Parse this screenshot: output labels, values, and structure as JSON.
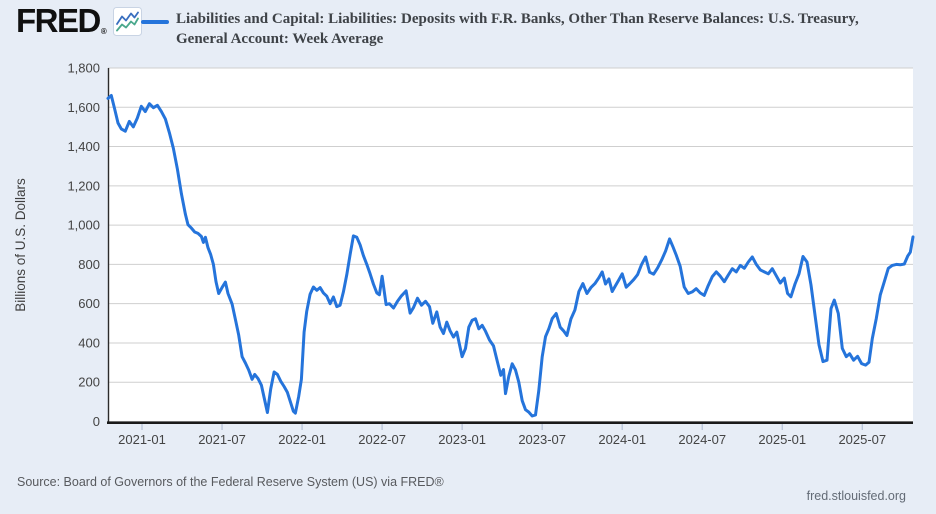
{
  "header": {
    "logo_text": "FRED",
    "logo_registered_mark": "®",
    "icon": "fred-zigzag-chart-icon",
    "title_line1": "Liabilities and Capital: Liabilities: Deposits with F.R. Banks, Other Than Reserve Balances: U.S. Treasury,",
    "title_line2": "General Account: Week Average"
  },
  "footer": {
    "source": "Source: Board of Governors of the Federal Reserve System (US) via FRED®",
    "site": "fred.stlouisfed.org"
  },
  "colors": {
    "background": "#e7edf6",
    "plot_background": "#ffffff",
    "gridline": "#cfcfcf",
    "axis_line": "#1a1a1a",
    "tick_mark": "#b8c4d9",
    "tick_label": "#444444",
    "line": "#2574db",
    "logo_icon_blue": "#3a6fbf",
    "logo_icon_green": "#4aa88c"
  },
  "chart_data": {
    "type": "line",
    "title": "Liabilities and Capital: Liabilities: Deposits with F.R. Banks, Other Than Reserve Balances: U.S. Treasury, General Account: Week Average",
    "xlabel": "",
    "ylabel": "Billions of U.S. Dollars",
    "ylim": [
      0,
      1800
    ],
    "y_tick_step": 200,
    "y_tick_values": [
      0,
      200,
      400,
      600,
      800,
      1000,
      1200,
      1400,
      1600,
      1800
    ],
    "y_tick_labels": [
      "0",
      "200",
      "400",
      "600",
      "800",
      "1,000",
      "1,200",
      "1,400",
      "1,600",
      "1,800"
    ],
    "grid": "horizontal-on",
    "legend_position": "top",
    "line_color": "#2574db",
    "x_unit": "months since 2020-10-15 (left edge of plot)",
    "x_range_t": [
      0,
      60.35
    ],
    "x_ticks": [
      {
        "t": 2.55,
        "label": "2021-01"
      },
      {
        "t": 8.55,
        "label": "2021-07"
      },
      {
        "t": 14.55,
        "label": "2022-01"
      },
      {
        "t": 20.55,
        "label": "2022-07"
      },
      {
        "t": 26.55,
        "label": "2023-01"
      },
      {
        "t": 32.55,
        "label": "2023-07"
      },
      {
        "t": 38.55,
        "label": "2024-01"
      },
      {
        "t": 44.55,
        "label": "2024-07"
      },
      {
        "t": 50.55,
        "label": "2025-01"
      },
      {
        "t": 56.55,
        "label": "2025-07"
      }
    ],
    "series": [
      {
        "name": "Liabilities and Capital: Liabilities: Deposits with F.R. Banks, Other Than Reserve Balances: U.S. Treasury, General Account: Week Average",
        "units": "Billions of U.S. Dollars",
        "points": [
          [
            0,
            1645
          ],
          [
            0.25,
            1660
          ],
          [
            0.5,
            1590
          ],
          [
            0.75,
            1520
          ],
          [
            1,
            1490
          ],
          [
            1.3,
            1478
          ],
          [
            1.6,
            1528
          ],
          [
            1.9,
            1500
          ],
          [
            2.2,
            1545
          ],
          [
            2.5,
            1605
          ],
          [
            2.8,
            1578
          ],
          [
            3.1,
            1618
          ],
          [
            3.4,
            1598
          ],
          [
            3.7,
            1610
          ],
          [
            4,
            1578
          ],
          [
            4.3,
            1540
          ],
          [
            4.6,
            1470
          ],
          [
            4.9,
            1390
          ],
          [
            5.2,
            1285
          ],
          [
            5.5,
            1160
          ],
          [
            5.8,
            1055
          ],
          [
            6,
            1002
          ],
          [
            6.25,
            985
          ],
          [
            6.5,
            965
          ],
          [
            6.75,
            958
          ],
          [
            7,
            942
          ],
          [
            7.15,
            912
          ],
          [
            7.3,
            938
          ],
          [
            7.5,
            885
          ],
          [
            7.7,
            850
          ],
          [
            7.9,
            800
          ],
          [
            8.1,
            712
          ],
          [
            8.3,
            652
          ],
          [
            8.55,
            682
          ],
          [
            8.8,
            710
          ],
          [
            9,
            652
          ],
          [
            9.3,
            598
          ],
          [
            9.55,
            520
          ],
          [
            9.8,
            440
          ],
          [
            10.05,
            330
          ],
          [
            10.3,
            298
          ],
          [
            10.55,
            262
          ],
          [
            10.8,
            215
          ],
          [
            11,
            240
          ],
          [
            11.25,
            218
          ],
          [
            11.5,
            185
          ],
          [
            11.7,
            122
          ],
          [
            11.95,
            46
          ],
          [
            12.2,
            165
          ],
          [
            12.45,
            252
          ],
          [
            12.7,
            240
          ],
          [
            12.95,
            205
          ],
          [
            13.2,
            178
          ],
          [
            13.45,
            148
          ],
          [
            13.7,
            95
          ],
          [
            13.9,
            52
          ],
          [
            14.05,
            43
          ],
          [
            14.3,
            128
          ],
          [
            14.5,
            215
          ],
          [
            14.7,
            455
          ],
          [
            14.9,
            560
          ],
          [
            15.15,
            648
          ],
          [
            15.4,
            685
          ],
          [
            15.65,
            668
          ],
          [
            15.9,
            682
          ],
          [
            16.15,
            655
          ],
          [
            16.4,
            638
          ],
          [
            16.65,
            600
          ],
          [
            16.9,
            634
          ],
          [
            17.15,
            585
          ],
          [
            17.4,
            592
          ],
          [
            17.65,
            660
          ],
          [
            17.9,
            748
          ],
          [
            18.15,
            850
          ],
          [
            18.4,
            945
          ],
          [
            18.65,
            938
          ],
          [
            18.9,
            900
          ],
          [
            19.15,
            845
          ],
          [
            19.4,
            800
          ],
          [
            19.65,
            752
          ],
          [
            19.9,
            700
          ],
          [
            20.15,
            655
          ],
          [
            20.35,
            645
          ],
          [
            20.55,
            740
          ],
          [
            20.85,
            595
          ],
          [
            21.1,
            600
          ],
          [
            21.4,
            578
          ],
          [
            21.7,
            612
          ],
          [
            22,
            640
          ],
          [
            22.35,
            665
          ],
          [
            22.65,
            552
          ],
          [
            22.9,
            580
          ],
          [
            23.2,
            628
          ],
          [
            23.5,
            592
          ],
          [
            23.8,
            612
          ],
          [
            24.1,
            585
          ],
          [
            24.35,
            500
          ],
          [
            24.65,
            558
          ],
          [
            24.9,
            481
          ],
          [
            25.15,
            448
          ],
          [
            25.4,
            506
          ],
          [
            25.65,
            462
          ],
          [
            25.9,
            430
          ],
          [
            26.15,
            455
          ],
          [
            26.55,
            330
          ],
          [
            26.8,
            372
          ],
          [
            27.05,
            480
          ],
          [
            27.3,
            516
          ],
          [
            27.55,
            523
          ],
          [
            27.8,
            472
          ],
          [
            28.05,
            490
          ],
          [
            28.3,
            460
          ],
          [
            28.6,
            415
          ],
          [
            28.9,
            385
          ],
          [
            29.2,
            302
          ],
          [
            29.45,
            235
          ],
          [
            29.65,
            265
          ],
          [
            29.8,
            142
          ],
          [
            30.05,
            230
          ],
          [
            30.3,
            294
          ],
          [
            30.55,
            262
          ],
          [
            30.8,
            200
          ],
          [
            31.05,
            106
          ],
          [
            31.3,
            60
          ],
          [
            31.55,
            48
          ],
          [
            31.8,
            28
          ],
          [
            32.05,
            33
          ],
          [
            32.3,
            158
          ],
          [
            32.55,
            330
          ],
          [
            32.8,
            432
          ],
          [
            33.05,
            472
          ],
          [
            33.3,
            524
          ],
          [
            33.6,
            550
          ],
          [
            33.9,
            480
          ],
          [
            34.15,
            462
          ],
          [
            34.4,
            438
          ],
          [
            34.7,
            522
          ],
          [
            35,
            568
          ],
          [
            35.3,
            662
          ],
          [
            35.6,
            702
          ],
          [
            35.9,
            652
          ],
          [
            36.2,
            682
          ],
          [
            36.5,
            702
          ],
          [
            36.8,
            732
          ],
          [
            37.05,
            762
          ],
          [
            37.3,
            700
          ],
          [
            37.55,
            726
          ],
          [
            37.8,
            662
          ],
          [
            38.05,
            692
          ],
          [
            38.3,
            722
          ],
          [
            38.55,
            752
          ],
          [
            38.85,
            684
          ],
          [
            39.1,
            700
          ],
          [
            39.4,
            722
          ],
          [
            39.7,
            748
          ],
          [
            40,
            800
          ],
          [
            40.3,
            838
          ],
          [
            40.6,
            760
          ],
          [
            40.9,
            750
          ],
          [
            41.2,
            782
          ],
          [
            41.5,
            822
          ],
          [
            41.8,
            868
          ],
          [
            42.1,
            930
          ],
          [
            42.35,
            890
          ],
          [
            42.6,
            848
          ],
          [
            42.9,
            790
          ],
          [
            43.2,
            685
          ],
          [
            43.5,
            652
          ],
          [
            43.8,
            660
          ],
          [
            44.1,
            676
          ],
          [
            44.4,
            655
          ],
          [
            44.7,
            642
          ],
          [
            45,
            692
          ],
          [
            45.3,
            738
          ],
          [
            45.6,
            762
          ],
          [
            45.9,
            740
          ],
          [
            46.2,
            712
          ],
          [
            46.5,
            746
          ],
          [
            46.8,
            778
          ],
          [
            47.1,
            762
          ],
          [
            47.4,
            795
          ],
          [
            47.7,
            780
          ],
          [
            48,
            812
          ],
          [
            48.3,
            838
          ],
          [
            48.6,
            800
          ],
          [
            48.9,
            772
          ],
          [
            49.2,
            762
          ],
          [
            49.5,
            752
          ],
          [
            49.8,
            778
          ],
          [
            50.1,
            742
          ],
          [
            50.4,
            705
          ],
          [
            50.7,
            730
          ],
          [
            50.95,
            652
          ],
          [
            51.2,
            635
          ],
          [
            51.5,
            700
          ],
          [
            51.8,
            752
          ],
          [
            52.1,
            840
          ],
          [
            52.4,
            812
          ],
          [
            52.7,
            695
          ],
          [
            53,
            542
          ],
          [
            53.3,
            390
          ],
          [
            53.6,
            305
          ],
          [
            53.9,
            312
          ],
          [
            54.2,
            575
          ],
          [
            54.45,
            618
          ],
          [
            54.75,
            550
          ],
          [
            55.05,
            372
          ],
          [
            55.35,
            330
          ],
          [
            55.6,
            345
          ],
          [
            55.9,
            312
          ],
          [
            56.2,
            332
          ],
          [
            56.5,
            295
          ],
          [
            56.8,
            287
          ],
          [
            57.05,
            302
          ],
          [
            57.3,
            422
          ],
          [
            57.6,
            525
          ],
          [
            57.9,
            645
          ],
          [
            58.2,
            712
          ],
          [
            58.5,
            780
          ],
          [
            58.8,
            795
          ],
          [
            59.1,
            800
          ],
          [
            59.4,
            798
          ],
          [
            59.7,
            802
          ],
          [
            59.95,
            842
          ],
          [
            60.15,
            862
          ],
          [
            60.35,
            940
          ]
        ]
      }
    ]
  }
}
